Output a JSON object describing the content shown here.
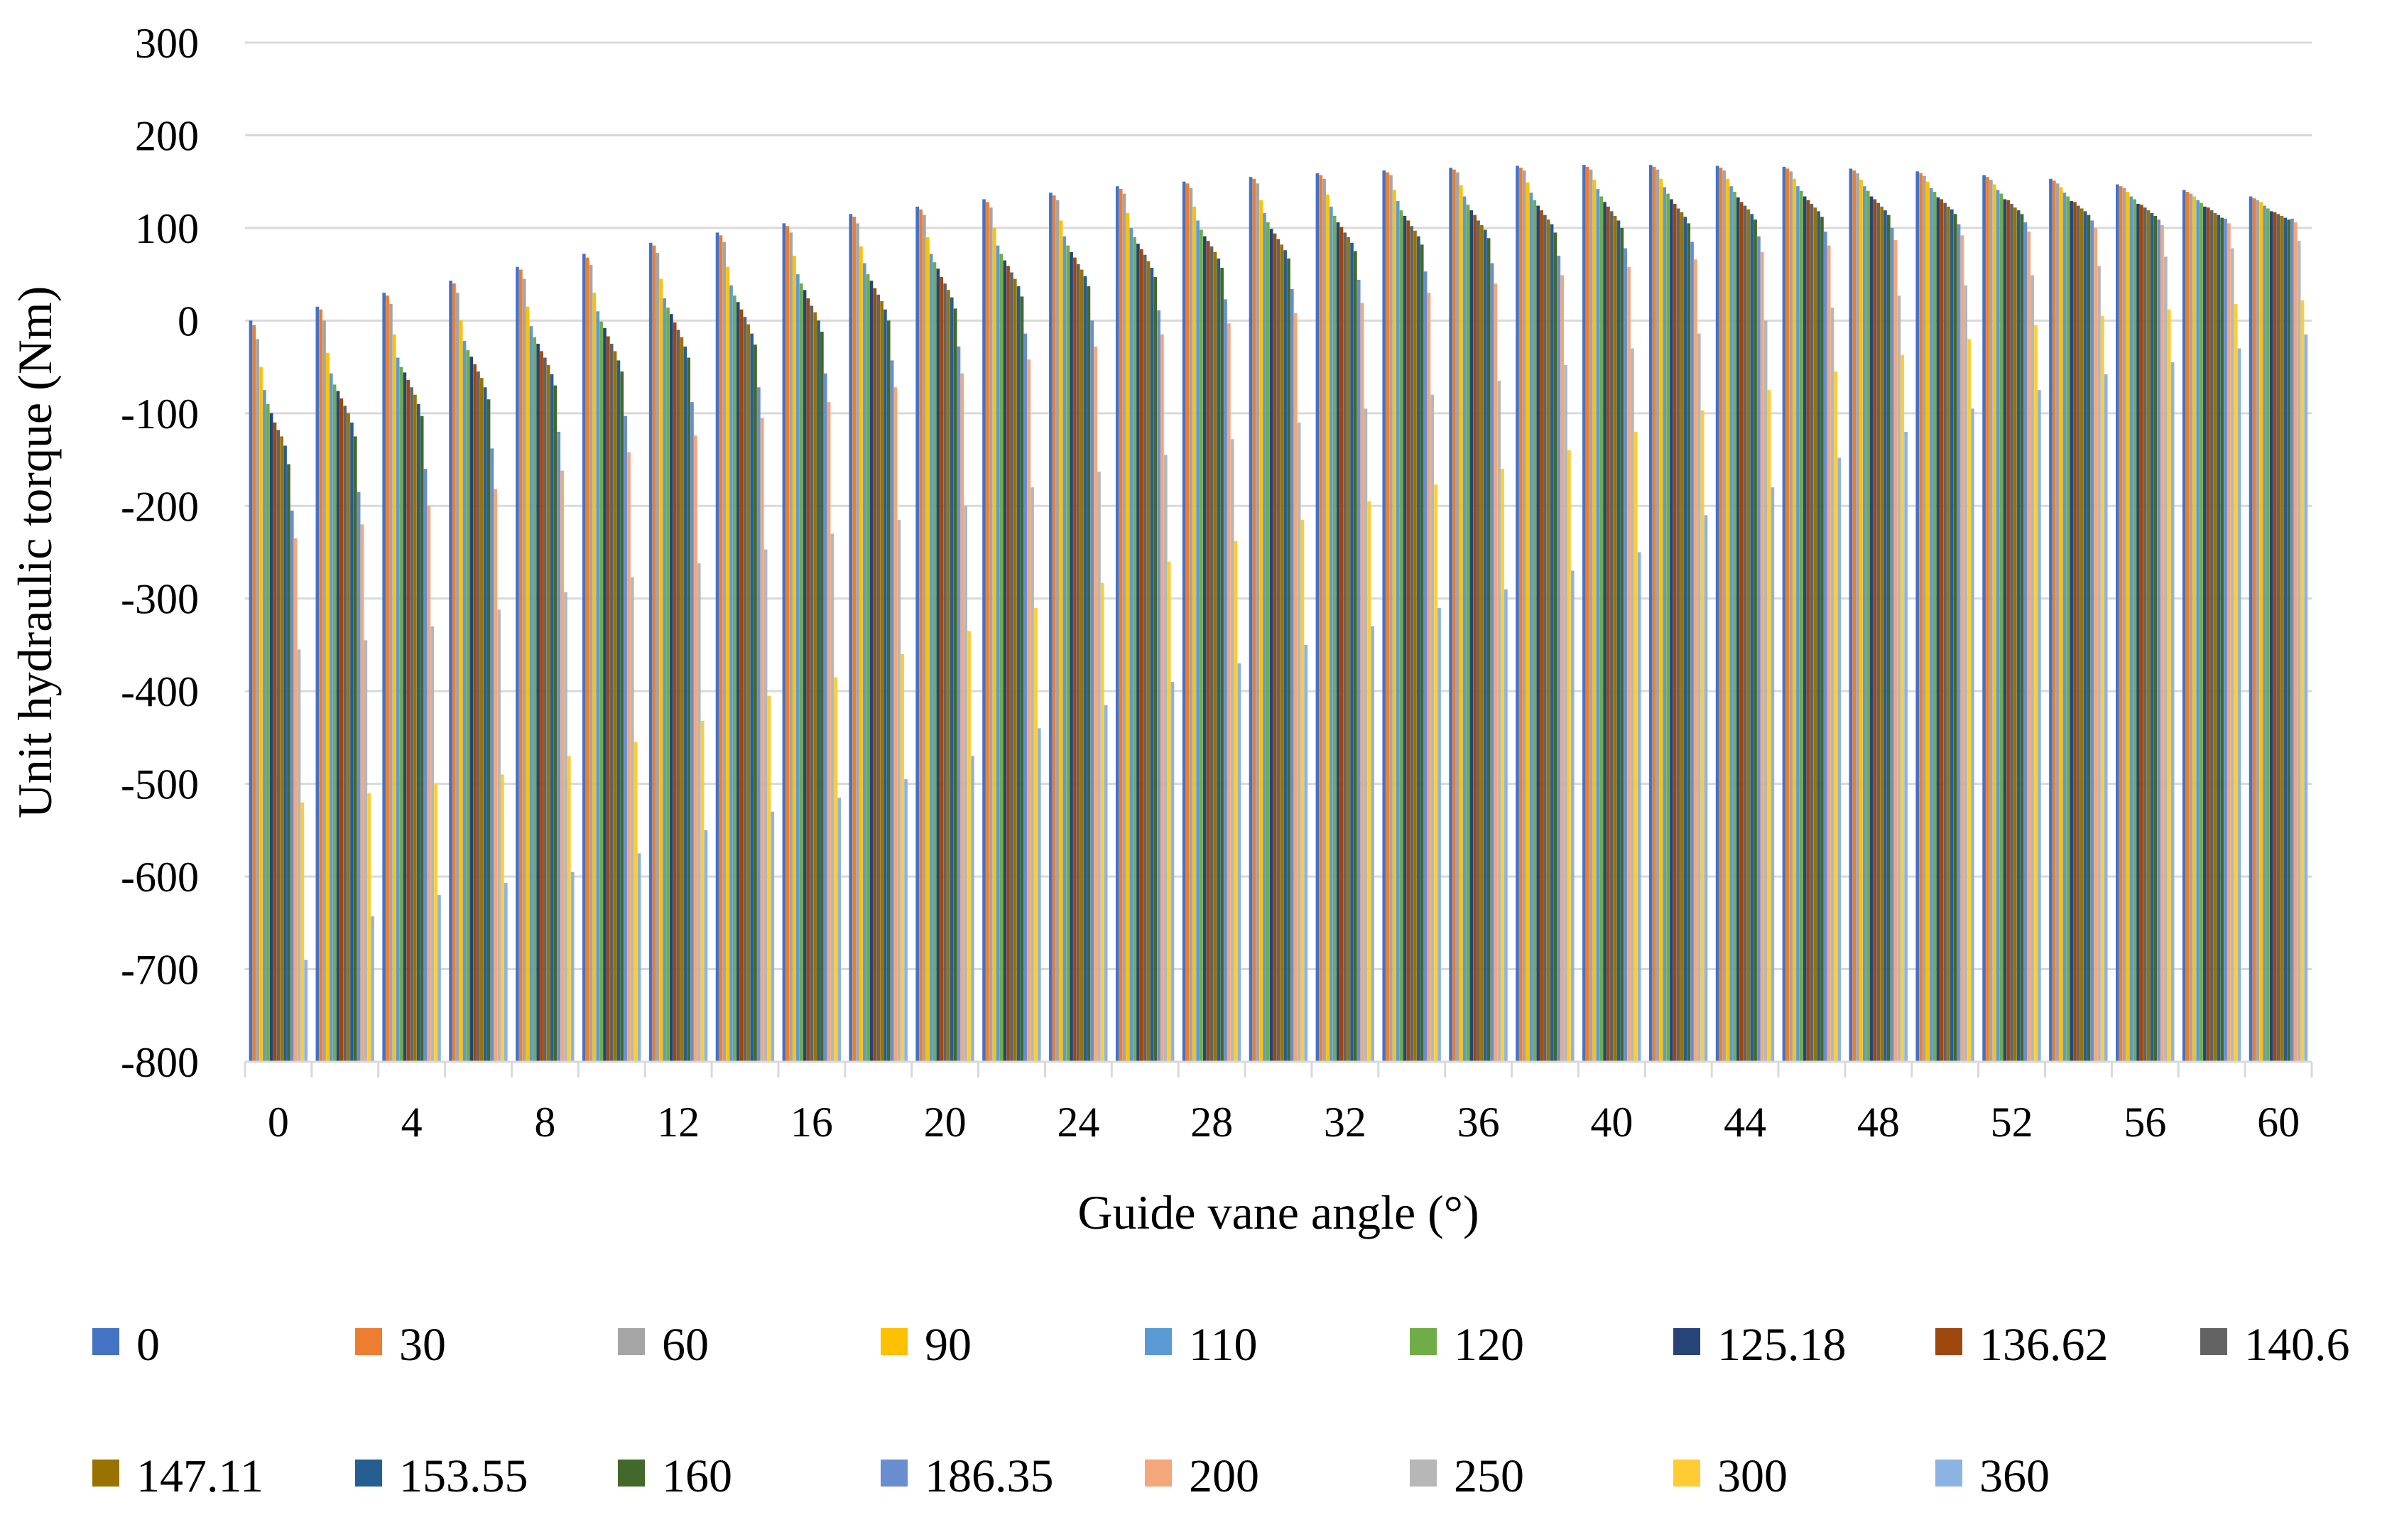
{
  "chart_data": {
    "type": "bar",
    "title": "",
    "xlabel": "Guide vane angle (°)",
    "ylabel": "Unit hydraulic torque (Nm)",
    "ylim": [
      -800,
      300
    ],
    "ytick_step": 100,
    "grid": true,
    "legend_position": "bottom",
    "x_tick_labels": [
      "0",
      "4",
      "8",
      "12",
      "16",
      "20",
      "24",
      "28",
      "32",
      "36",
      "40",
      "44",
      "48",
      "52",
      "56",
      "60"
    ],
    "categories": [
      0,
      2,
      4,
      6,
      8,
      10,
      12,
      14,
      16,
      18,
      20,
      22,
      24,
      26,
      28,
      30,
      32,
      34,
      36,
      38,
      40,
      42,
      44,
      46,
      48,
      50,
      52,
      54,
      56,
      58,
      60
    ],
    "series": [
      {
        "name": "0",
        "color": "#4472C4",
        "values": [
          0,
          15,
          30,
          43,
          58,
          72,
          84,
          95,
          105,
          115,
          123,
          131,
          138,
          145,
          150,
          155,
          159,
          162,
          165,
          167,
          168,
          168,
          167,
          166,
          164,
          161,
          157,
          153,
          147,
          141,
          134
        ]
      },
      {
        "name": "30",
        "color": "#ED7D31",
        "values": [
          -5,
          12,
          27,
          40,
          55,
          68,
          81,
          92,
          102,
          112,
          120,
          128,
          135,
          142,
          148,
          153,
          157,
          160,
          163,
          165,
          166,
          166,
          165,
          164,
          162,
          159,
          155,
          151,
          145,
          139,
          132
        ]
      },
      {
        "name": "60",
        "color": "#A5A5A5",
        "values": [
          -20,
          0,
          18,
          30,
          45,
          60,
          73,
          85,
          95,
          105,
          114,
          122,
          130,
          137,
          143,
          148,
          153,
          157,
          160,
          162,
          163,
          163,
          162,
          161,
          159,
          156,
          152,
          148,
          143,
          137,
          130
        ]
      },
      {
        "name": "90",
        "color": "#FFC000",
        "values": [
          -50,
          -35,
          -15,
          0,
          15,
          30,
          45,
          58,
          70,
          80,
          90,
          100,
          108,
          116,
          123,
          130,
          136,
          141,
          146,
          149,
          152,
          153,
          153,
          153,
          152,
          150,
          147,
          144,
          139,
          134,
          128
        ]
      },
      {
        "name": "110",
        "color": "#5B9BD5",
        "values": [
          -75,
          -57,
          -40,
          -22,
          -6,
          10,
          24,
          38,
          50,
          62,
          72,
          81,
          91,
          100,
          108,
          116,
          123,
          129,
          134,
          138,
          142,
          144,
          145,
          145,
          145,
          143,
          141,
          138,
          134,
          130,
          124
        ]
      },
      {
        "name": "120",
        "color": "#70AD47",
        "values": [
          -90,
          -69,
          -50,
          -32,
          -18,
          -1,
          14,
          27,
          40,
          50,
          63,
          72,
          81,
          90,
          98,
          106,
          113,
          119,
          125,
          130,
          134,
          137,
          139,
          140,
          140,
          139,
          137,
          134,
          131,
          127,
          121
        ]
      },
      {
        "name": "125.18",
        "color": "#264478",
        "values": [
          -100,
          -76,
          -56,
          -39,
          -25,
          -8,
          7,
          20,
          33,
          43,
          56,
          65,
          74,
          83,
          91,
          99,
          106,
          113,
          119,
          124,
          128,
          131,
          133,
          134,
          134,
          133,
          131,
          129,
          126,
          123,
          118
        ]
      },
      {
        "name": "136.62",
        "color": "#9E480E",
        "values": [
          -110,
          -84,
          -64,
          -47,
          -33,
          -17,
          -2,
          12,
          24,
          35,
          47,
          59,
          68,
          77,
          86,
          94,
          101,
          108,
          114,
          119,
          123,
          126,
          128,
          130,
          131,
          131,
          130,
          128,
          125,
          122,
          117
        ]
      },
      {
        "name": "140.6",
        "color": "#636363",
        "values": [
          -118,
          -92,
          -72,
          -55,
          -40,
          -25,
          -10,
          4,
          16,
          28,
          40,
          52,
          61,
          71,
          80,
          88,
          95,
          102,
          108,
          114,
          118,
          121,
          124,
          126,
          127,
          127,
          126,
          124,
          122,
          119,
          115
        ]
      },
      {
        "name": "147.11",
        "color": "#997300",
        "values": [
          -125,
          -100,
          -80,
          -62,
          -48,
          -33,
          -18,
          -4,
          9,
          21,
          33,
          45,
          55,
          64,
          74,
          82,
          90,
          97,
          103,
          109,
          113,
          117,
          120,
          122,
          123,
          123,
          122,
          121,
          119,
          116,
          113
        ]
      },
      {
        "name": "153.55",
        "color": "#255E91",
        "values": [
          -135,
          -110,
          -90,
          -72,
          -58,
          -43,
          -28,
          -14,
          0,
          12,
          25,
          37,
          48,
          57,
          67,
          76,
          84,
          91,
          98,
          104,
          108,
          112,
          115,
          118,
          119,
          120,
          119,
          118,
          116,
          114,
          111
        ]
      },
      {
        "name": "160",
        "color": "#43682B",
        "values": [
          -155,
          -125,
          -103,
          -85,
          -70,
          -55,
          -40,
          -26,
          -12,
          0,
          13,
          26,
          37,
          47,
          57,
          67,
          75,
          82,
          89,
          95,
          100,
          105,
          109,
          112,
          114,
          115,
          115,
          114,
          113,
          111,
          109
        ]
      },
      {
        "name": "186.35",
        "color": "#698ED0",
        "values": [
          -205,
          -185,
          -160,
          -138,
          -120,
          -103,
          -88,
          -72,
          -57,
          -43,
          -28,
          -14,
          0,
          11,
          23,
          34,
          44,
          53,
          62,
          70,
          78,
          85,
          91,
          96,
          100,
          104,
          106,
          108,
          109,
          110,
          110
        ]
      },
      {
        "name": "200",
        "color": "#F4A77B",
        "values": [
          -235,
          -220,
          -200,
          -182,
          -162,
          -142,
          -124,
          -105,
          -88,
          -72,
          -57,
          -42,
          -28,
          -15,
          -3,
          8,
          19,
          30,
          40,
          49,
          58,
          66,
          74,
          81,
          87,
          92,
          96,
          100,
          103,
          105,
          106
        ]
      },
      {
        "name": "250",
        "color": "#B7B7B7",
        "values": [
          -355,
          -345,
          -330,
          -312,
          -293,
          -277,
          -262,
          -247,
          -230,
          -215,
          -200,
          -180,
          -163,
          -145,
          -128,
          -110,
          -95,
          -80,
          -65,
          -48,
          -30,
          -14,
          0,
          14,
          27,
          38,
          49,
          59,
          69,
          78,
          86
        ]
      },
      {
        "name": "300",
        "color": "#FFCD33",
        "values": [
          -520,
          -510,
          -500,
          -490,
          -470,
          -455,
          -432,
          -405,
          -385,
          -360,
          -335,
          -310,
          -283,
          -260,
          -238,
          -215,
          -195,
          -177,
          -160,
          -140,
          -120,
          -97,
          -75,
          -55,
          -37,
          -20,
          -5,
          5,
          12,
          18,
          22
        ]
      },
      {
        "name": "360",
        "color": "#8CB4E3",
        "values": [
          -690,
          -643,
          -620,
          -607,
          -595,
          -575,
          -550,
          -530,
          -515,
          -495,
          -470,
          -440,
          -415,
          -390,
          -370,
          -350,
          -330,
          -310,
          -290,
          -270,
          -250,
          -210,
          -180,
          -148,
          -120,
          -95,
          -75,
          -58,
          -45,
          -30,
          -15
        ]
      }
    ]
  }
}
